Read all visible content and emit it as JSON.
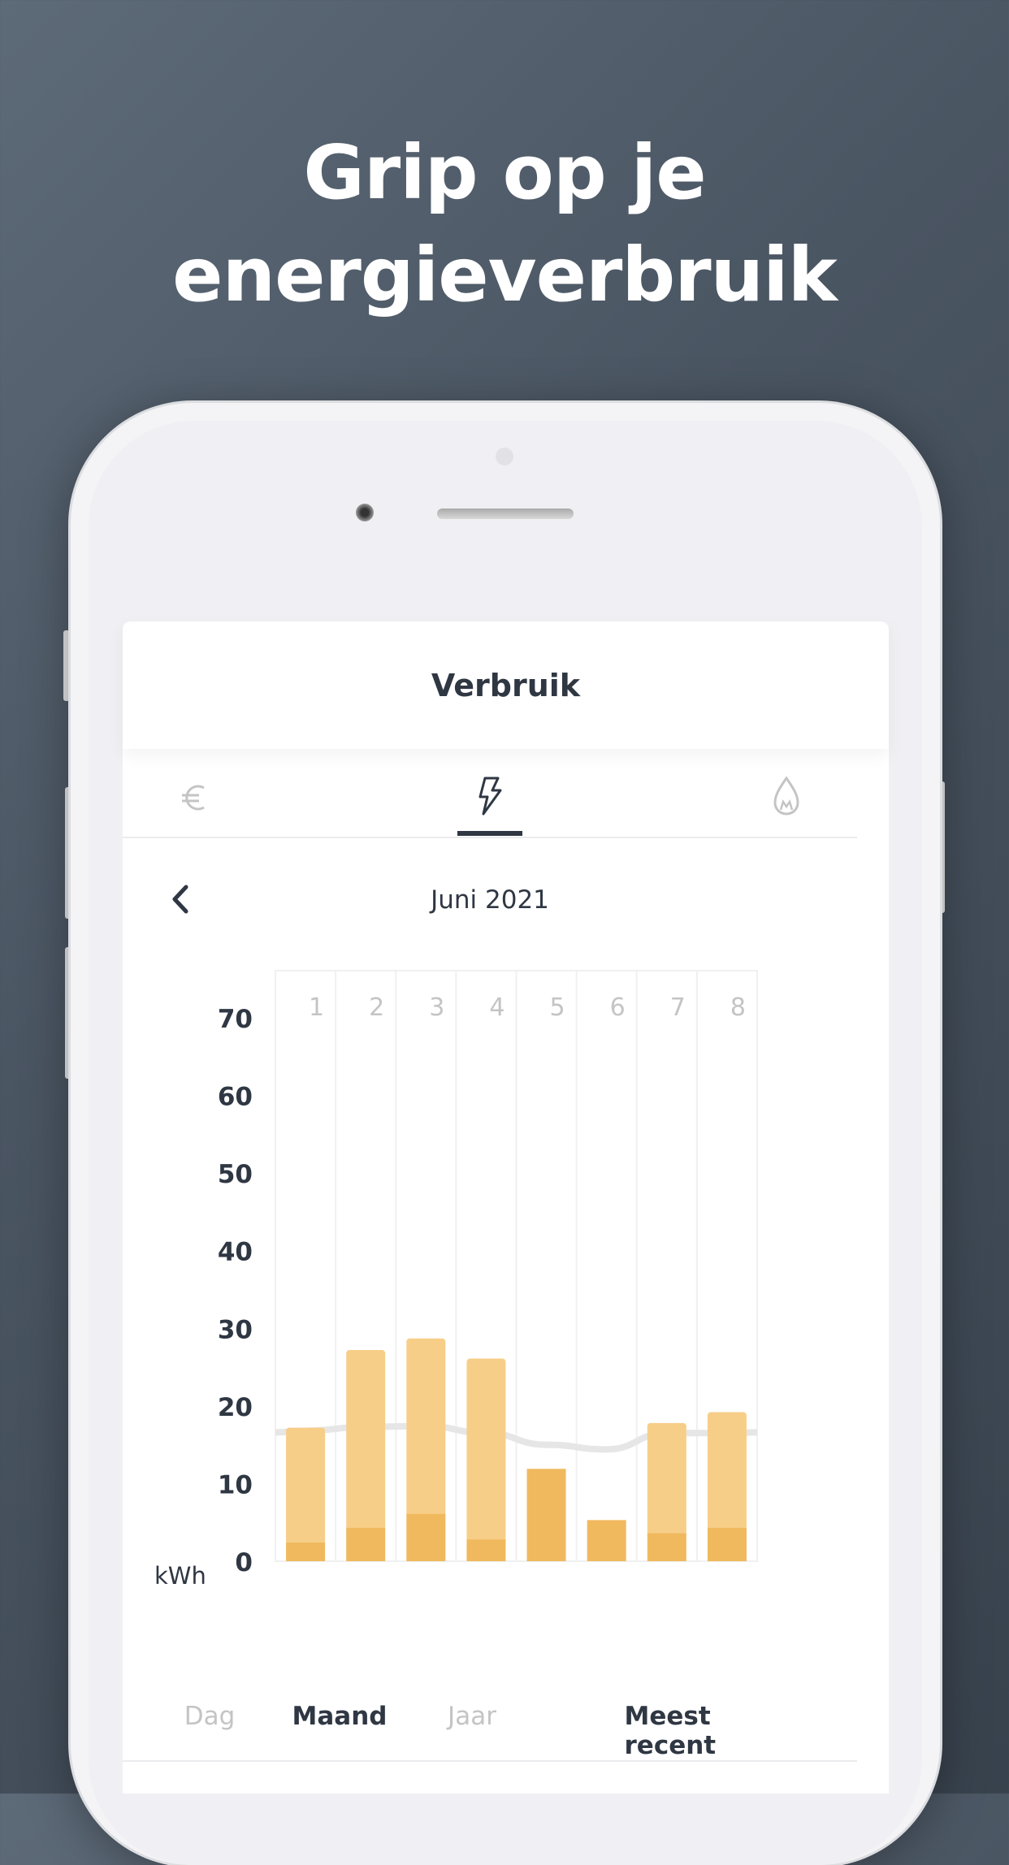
{
  "headline": {
    "line1": "Grip op je",
    "line2": "energieverbruik"
  },
  "app": {
    "title": "Verbruik",
    "tabs": [
      {
        "icon": "euro-icon",
        "active": false
      },
      {
        "icon": "lightning-icon",
        "active": true
      },
      {
        "icon": "flame-icon",
        "active": false
      }
    ],
    "period": "Juni 2021",
    "bottom_tabs": [
      {
        "label": "Dag",
        "active": false
      },
      {
        "label": "Maand",
        "active": true
      },
      {
        "label": "Jaar",
        "active": false
      },
      {
        "label": "Meest recent",
        "active": true
      }
    ]
  },
  "colors": {
    "bar_light": "#f7ce88",
    "bar_dark": "#f0b95e",
    "avg_line": "#e6e6e6",
    "text_dark": "#2f3743",
    "muted": "#c4c4c4"
  },
  "chart_data": {
    "type": "bar",
    "stacked": true,
    "categories": [
      "1",
      "2",
      "3",
      "4",
      "5",
      "6",
      "7",
      "8"
    ],
    "ylabel": "kWh",
    "ylim": [
      0,
      70
    ],
    "yticks": [
      0,
      10,
      20,
      30,
      40,
      50,
      60,
      70
    ],
    "series": [
      {
        "values": [
          2.4,
          4.3,
          6.1,
          2.8,
          11.9,
          5.3,
          3.6,
          4.3
        ]
      },
      {
        "values": [
          14.8,
          22.9,
          22.6,
          23.3,
          0,
          0,
          14.2,
          14.9
        ]
      }
    ],
    "average_line": [
      16.6,
      16.8,
      17.3,
      17.4,
      16.5,
      15.0,
      14.4,
      16.5,
      16.5,
      16.6
    ],
    "grid": true
  }
}
